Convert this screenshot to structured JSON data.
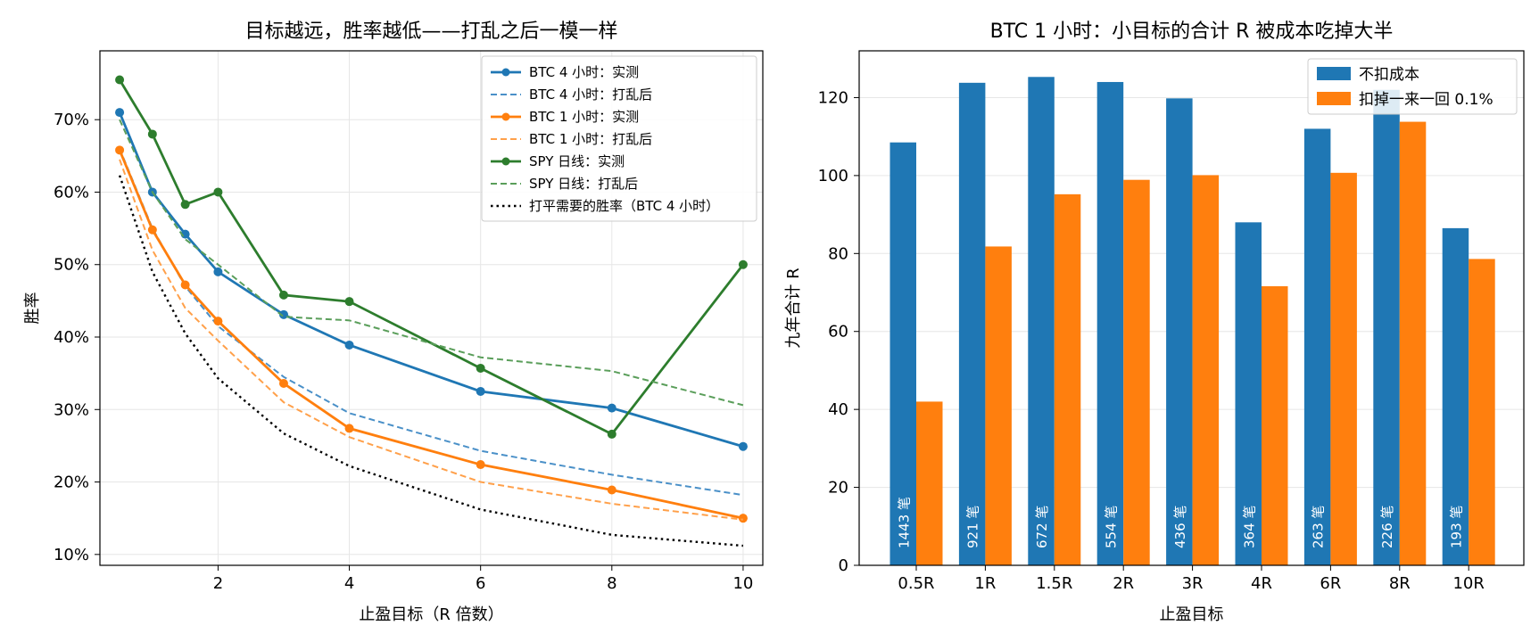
{
  "charts": [
    {
      "type": "line",
      "title": "目标越远，胜率越低——打乱之后一模一样",
      "xlabel": "止盈目标（R 倍数）",
      "ylabel": "胜率",
      "xlim": [
        0.2,
        10.3
      ],
      "ylim": [
        0.085,
        0.795
      ],
      "xticks": [
        2,
        4,
        6,
        8,
        10
      ],
      "yticks": [
        0.1,
        0.2,
        0.3,
        0.4,
        0.5,
        0.6,
        0.7
      ],
      "ytick_format": "percent",
      "grid": true,
      "legend_position": "top-right",
      "series": [
        {
          "name": "BTC 4 小时：实测",
          "color": "#1f77b4",
          "style": "solid",
          "marker": true,
          "x": [
            0.5,
            1,
            1.5,
            2,
            3,
            4,
            6,
            8,
            10
          ],
          "y": [
            0.71,
            0.6,
            0.542,
            0.49,
            0.431,
            0.389,
            0.325,
            0.302,
            0.249
          ]
        },
        {
          "name": "BTC 4 小时：打乱后",
          "color": "#4a90c8",
          "style": "dashed",
          "marker": false,
          "x": [
            0.5,
            1,
            1.5,
            2,
            3,
            4,
            6,
            8,
            10
          ],
          "y": [
            0.66,
            0.55,
            0.47,
            0.415,
            0.345,
            0.295,
            0.243,
            0.21,
            0.182
          ]
        },
        {
          "name": "BTC 1 小时：实测",
          "color": "#ff7f0e",
          "style": "solid",
          "marker": true,
          "x": [
            0.5,
            1,
            1.5,
            2,
            3,
            4,
            6,
            8,
            10
          ],
          "y": [
            0.658,
            0.548,
            0.472,
            0.422,
            0.336,
            0.274,
            0.224,
            0.189,
            0.15
          ]
        },
        {
          "name": "BTC 1 小时：打乱后",
          "color": "#ffa04a",
          "style": "dashed",
          "marker": false,
          "x": [
            0.5,
            1,
            1.5,
            2,
            3,
            4,
            6,
            8,
            10
          ],
          "y": [
            0.645,
            0.52,
            0.44,
            0.395,
            0.31,
            0.262,
            0.2,
            0.17,
            0.148
          ]
        },
        {
          "name": "SPY 日线：实测",
          "color": "#2d7d2d",
          "style": "solid",
          "marker": true,
          "x": [
            0.5,
            1,
            1.5,
            2,
            3,
            4,
            6,
            8,
            10
          ],
          "y": [
            0.755,
            0.68,
            0.583,
            0.6,
            0.458,
            0.449,
            0.357,
            0.266,
            0.5
          ]
        },
        {
          "name": "SPY 日线：打乱后",
          "color": "#5a9e5a",
          "style": "dashed",
          "marker": false,
          "x": [
            0.5,
            1,
            1.5,
            2,
            3,
            4,
            6,
            8,
            10
          ],
          "y": [
            0.7,
            0.6,
            0.535,
            0.5,
            0.428,
            0.423,
            0.372,
            0.353,
            0.306
          ]
        },
        {
          "name": "打平需要的胜率（BTC 4 小时）",
          "color": "#000000",
          "style": "dotted",
          "marker": false,
          "x": [
            0.5,
            1,
            1.5,
            2,
            3,
            4,
            6,
            8,
            10
          ],
          "y": [
            0.623,
            0.49,
            0.405,
            0.343,
            0.267,
            0.222,
            0.162,
            0.127,
            0.112
          ]
        }
      ]
    },
    {
      "type": "bar",
      "title": "BTC 1 小时：小目标的合计 R 被成本吃掉大半",
      "xlabel": "止盈目标",
      "ylabel": "九年合计 R",
      "ylim": [
        0,
        132
      ],
      "yticks": [
        0,
        20,
        40,
        60,
        80,
        100,
        120
      ],
      "grid": true,
      "legend_position": "top-right",
      "categories": [
        "0.5R",
        "1R",
        "1.5R",
        "2R",
        "3R",
        "4R",
        "6R",
        "8R",
        "10R"
      ],
      "series": [
        {
          "name": "不扣成本",
          "color": "#1f77b4",
          "values": [
            108.5,
            123.8,
            125.3,
            124.0,
            119.8,
            88.0,
            112.0,
            122.0,
            86.5
          ]
        },
        {
          "name": "扣掉一来一回 0.1%",
          "color": "#ff7f0e",
          "values": [
            42.0,
            81.8,
            95.2,
            98.9,
            100.1,
            71.6,
            100.7,
            113.8,
            78.6
          ]
        }
      ],
      "bar_labels": [
        "1443 笔",
        "921 笔",
        "672 笔",
        "554 笔",
        "436 笔",
        "364 笔",
        "263 笔",
        "226 笔",
        "193 笔"
      ]
    }
  ]
}
